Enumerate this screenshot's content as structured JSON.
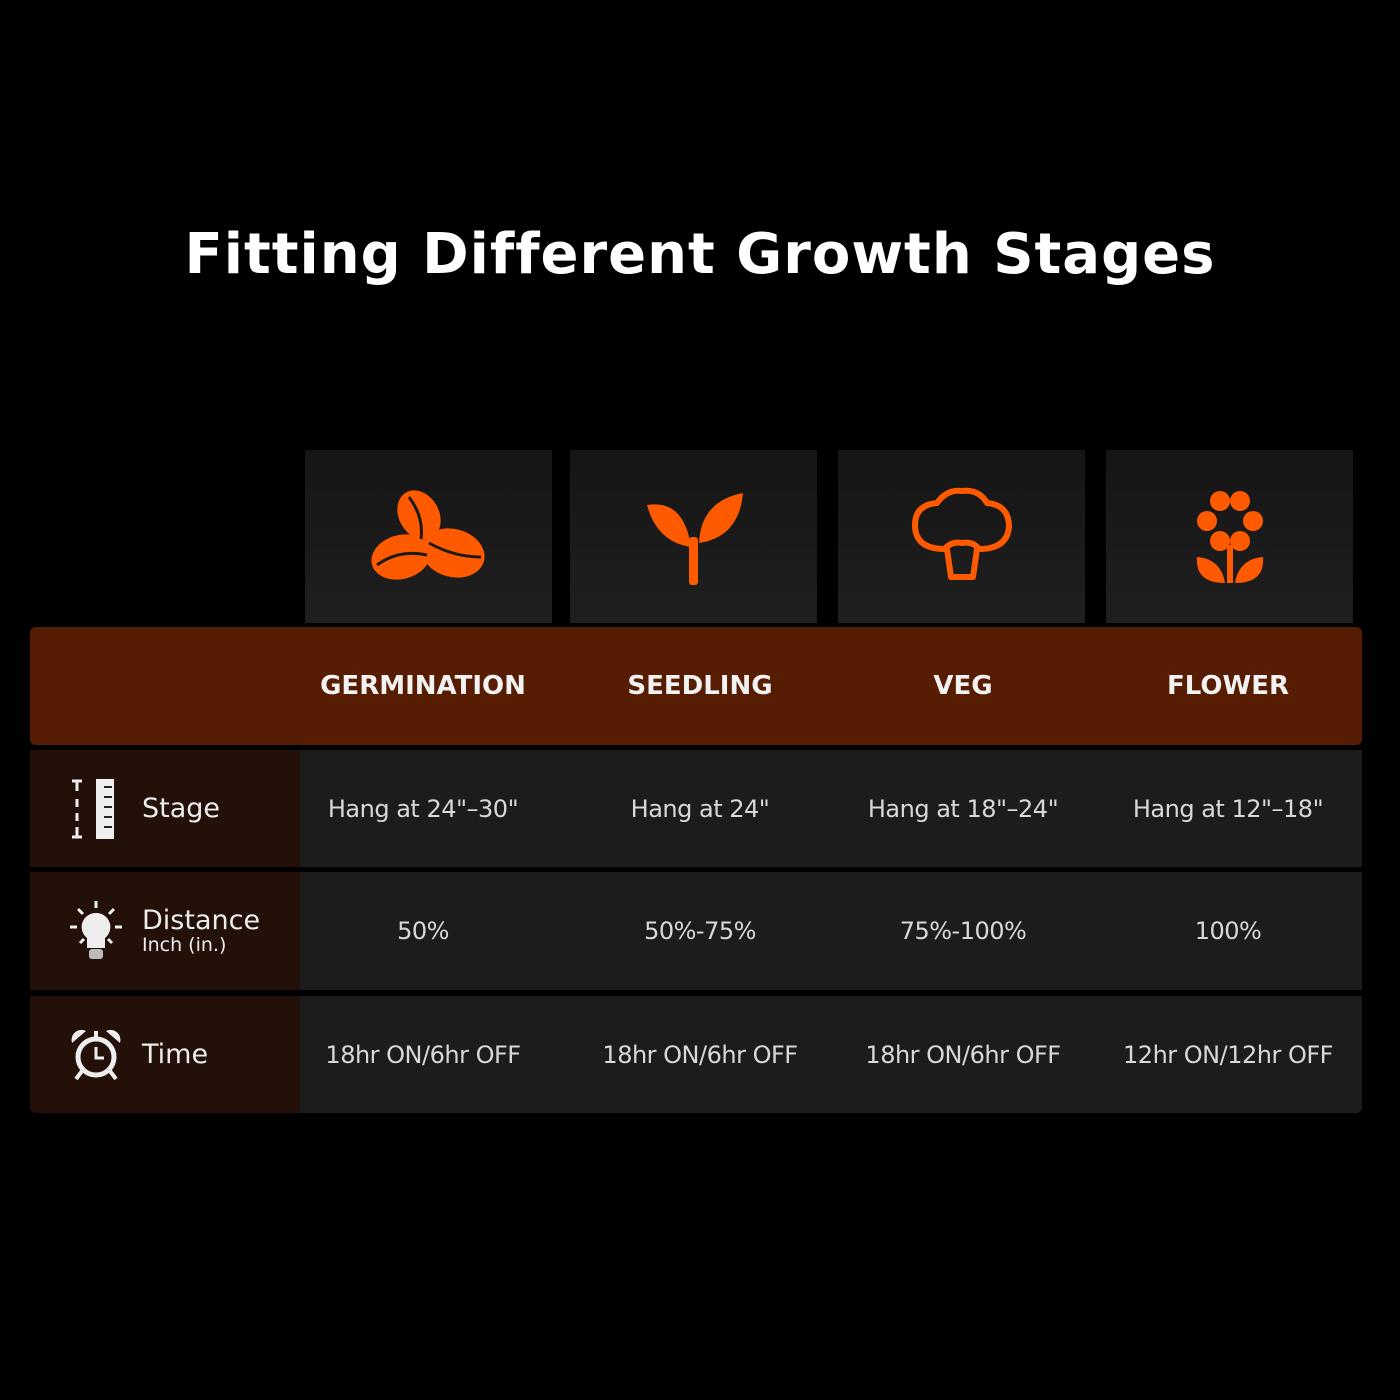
{
  "title": "Fitting Different Growth Stages",
  "accent": "#ff5a00",
  "stages": [
    {
      "label": "GERMINATION",
      "icon": "seeds-icon"
    },
    {
      "label": "SEEDLING",
      "icon": "sprout-icon"
    },
    {
      "label": "VEG",
      "icon": "tree-icon"
    },
    {
      "label": "FLOWER",
      "icon": "flower-icon"
    }
  ],
  "rows": [
    {
      "label": "Stage",
      "icon": "ruler-icon",
      "values": [
        "Hang at 24\"–30\"",
        "Hang at 24\"",
        "Hang at 18\"–24\"",
        "Hang at 12\"–18\""
      ]
    },
    {
      "label": "Distance",
      "sublabel": "Inch (in.)",
      "icon": "lightbulb-icon",
      "values": [
        "50%",
        "50%-75%",
        "75%-100%",
        "100%"
      ]
    },
    {
      "label": "Time",
      "icon": "alarm-clock-icon",
      "values": [
        "18hr ON/6hr OFF",
        "18hr ON/6hr OFF",
        "18hr ON/6hr OFF",
        "12hr ON/12hr OFF"
      ]
    }
  ]
}
